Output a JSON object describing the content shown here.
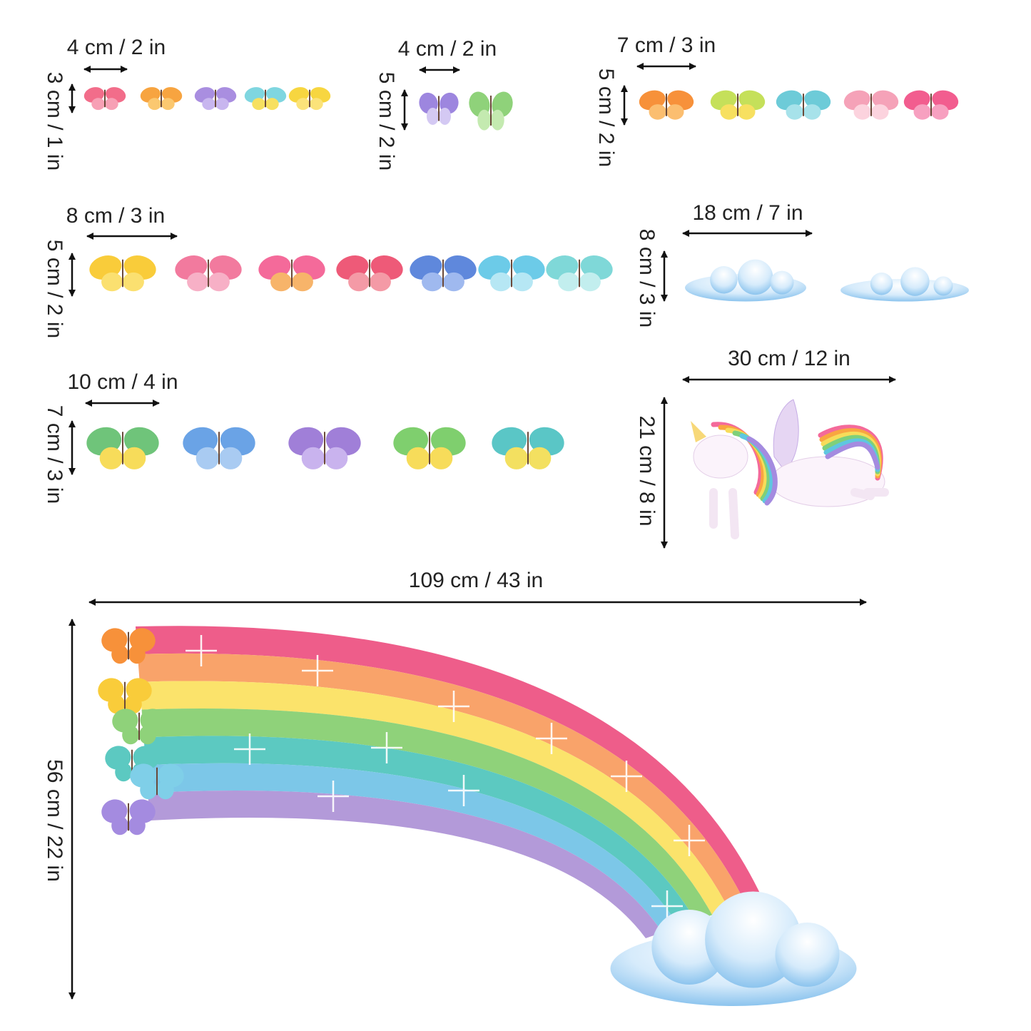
{
  "groups": [
    {
      "width": "4 cm / 2 in",
      "height": "3 cm / 1 in"
    },
    {
      "width": "4 cm / 2 in",
      "height": "5 cm / 2 in"
    },
    {
      "width": "7 cm / 3 in",
      "height": "5 cm / 2 in"
    },
    {
      "width": "8 cm / 3 in",
      "height": "5 cm / 2 in"
    },
    {
      "width": "18 cm / 7 in",
      "height": "8 cm / 3 in"
    },
    {
      "width": "10 cm / 4 in",
      "height": "7 cm / 3 in"
    },
    {
      "width": "30 cm / 12 in",
      "height": "21 cm / 8 in"
    },
    {
      "width": "109 cm / 43 in",
      "height": "56 cm / 22 in"
    }
  ]
}
